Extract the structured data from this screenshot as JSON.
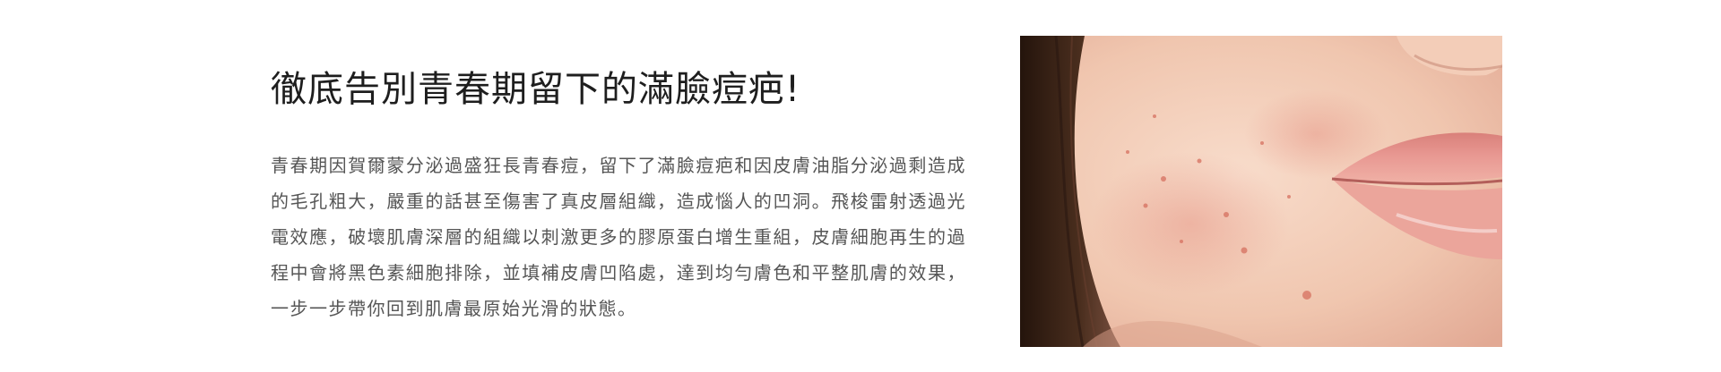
{
  "content": {
    "heading": "徹底告別青春期留下的滿臉痘疤!",
    "description": "青春期因賀爾蒙分泌過盛狂長青春痘，留下了滿臉痘疤和因皮膚油脂分泌過剩造成的毛孔粗大，嚴重的話甚至傷害了真皮層組織，造成惱人的凹洞。飛梭雷射透過光電效應，破壞肌膚深層的組織以刺激更多的膠原蛋白增生重組，皮膚細胞再生的過程中會將黑色素細胞排除，並填補皮膚凹陷處，達到均勻膚色和平整肌膚的效果，一步一步帶你回到肌膚最原始光滑的狀態。"
  },
  "image": {
    "subject": "close-up of a woman's cheek with acne scars and lips",
    "colors": {
      "skin_light": "#f6d9c8",
      "skin_mid": "#efc3ab",
      "hair": "#3a2418",
      "lips": "#e6938d"
    }
  }
}
